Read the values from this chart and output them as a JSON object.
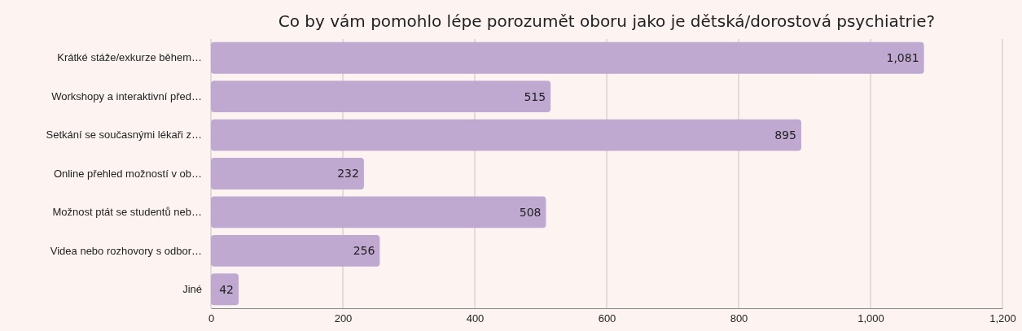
{
  "chart_data": {
    "type": "bar",
    "orientation": "horizontal",
    "title": "Co by vám pomohlo lépe porozumět oboru jako je dětská/dorostová psychiatrie?",
    "categories": [
      "Krátké stáže/exkurze během…",
      "Workshopy a interaktivní před…",
      "Setkání se současnými lékaři z…",
      "Online přehled možností v ob…",
      "Možnost ptát se studentů neb…",
      "Videa nebo rozhovory s odbor…",
      "Jiné"
    ],
    "values": [
      1081,
      515,
      895,
      232,
      508,
      256,
      42
    ],
    "value_labels": [
      "1,081",
      "515",
      "895",
      "232",
      "508",
      "256",
      "42"
    ],
    "color": "#c0a9d1",
    "xlim": [
      0,
      1200
    ],
    "xticks": [
      0,
      200,
      400,
      600,
      800,
      {
        "value": 1000,
        "label": "1,000"
      },
      {
        "value": 1200,
        "label": "1,200"
      }
    ],
    "grid": "x"
  }
}
